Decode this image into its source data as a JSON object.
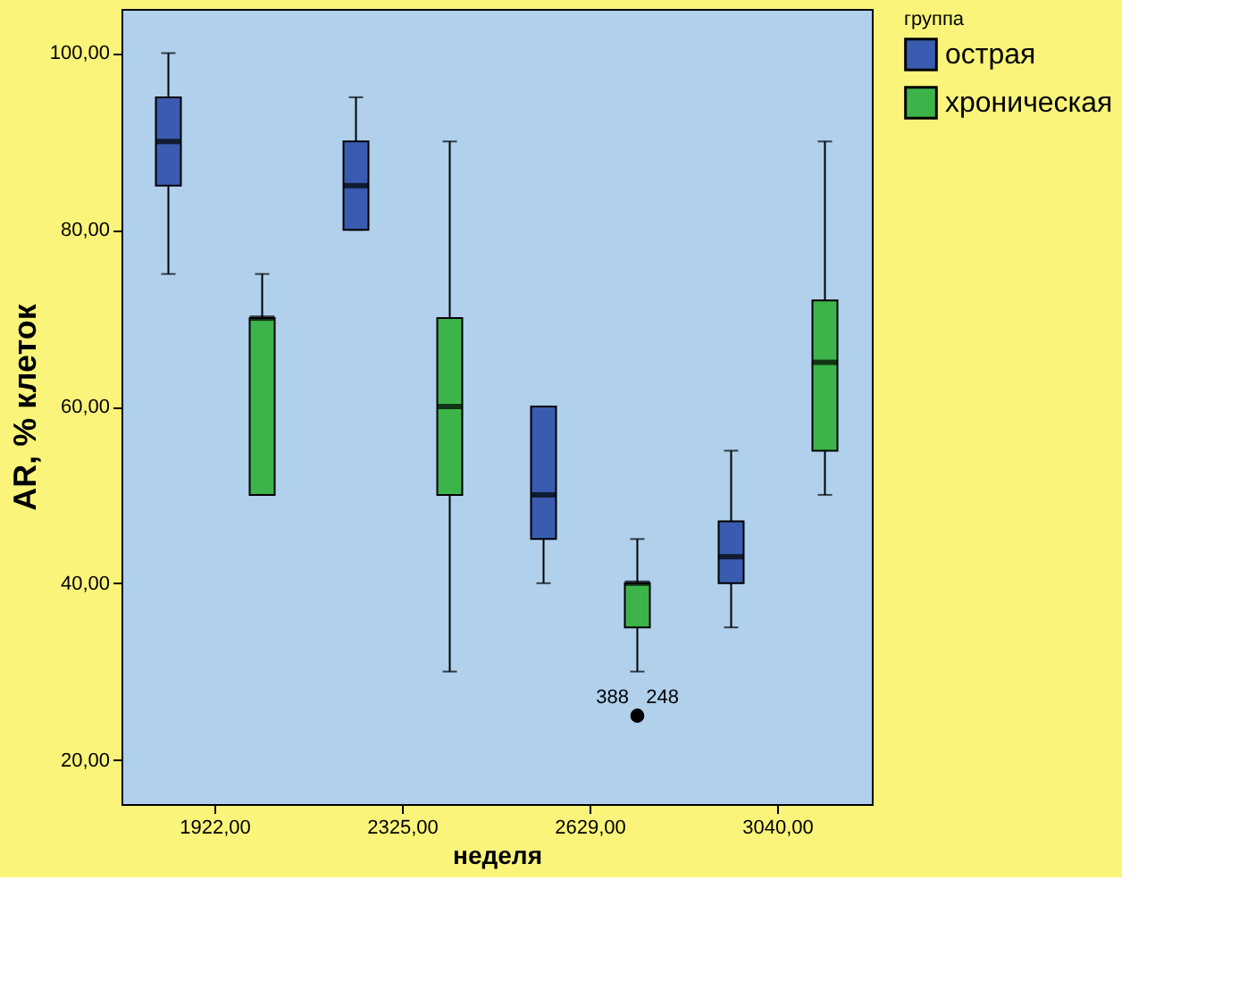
{
  "chart_data": {
    "type": "box",
    "xlabel": "неделя",
    "ylabel": "AR, % клеток",
    "legend_title": "группа",
    "legend": "top right",
    "grid": false,
    "categories": [
      "1922,00",
      "2325,00",
      "2629,00",
      "3040,00"
    ],
    "ylim": [
      15,
      105
    ],
    "yticks": [
      {
        "value": 20,
        "label": "20,00"
      },
      {
        "value": 40,
        "label": "40,00"
      },
      {
        "value": 60,
        "label": "60,00"
      },
      {
        "value": 80,
        "label": "80,00"
      },
      {
        "value": 100,
        "label": "100,00"
      }
    ],
    "series": [
      {
        "name": "острая",
        "color": "#3a5cb0",
        "boxes": [
          {
            "low": 75,
            "q1": 85,
            "median": 90,
            "q3": 95,
            "high": 100
          },
          {
            "low": 80,
            "q1": 80,
            "median": 85,
            "q3": 90,
            "high": 95
          },
          {
            "low": 40,
            "q1": 45,
            "median": 50,
            "q3": 60,
            "high": 60
          },
          {
            "low": 35,
            "q1": 40,
            "median": 43,
            "q3": 47,
            "high": 55
          }
        ]
      },
      {
        "name": "хроническая",
        "color": "#3cb44a",
        "boxes": [
          {
            "low": 50,
            "q1": 50,
            "median": 70,
            "q3": 70,
            "high": 75
          },
          {
            "low": 30,
            "q1": 50,
            "median": 60,
            "q3": 70,
            "high": 90
          },
          {
            "low": 30,
            "q1": 35,
            "median": 40,
            "q3": 40,
            "high": 45,
            "outliers": [
              25,
              25
            ]
          },
          {
            "low": 50,
            "q1": 55,
            "median": 65,
            "q3": 72,
            "high": 90
          }
        ]
      }
    ],
    "annotations": [
      "388",
      "248"
    ]
  }
}
